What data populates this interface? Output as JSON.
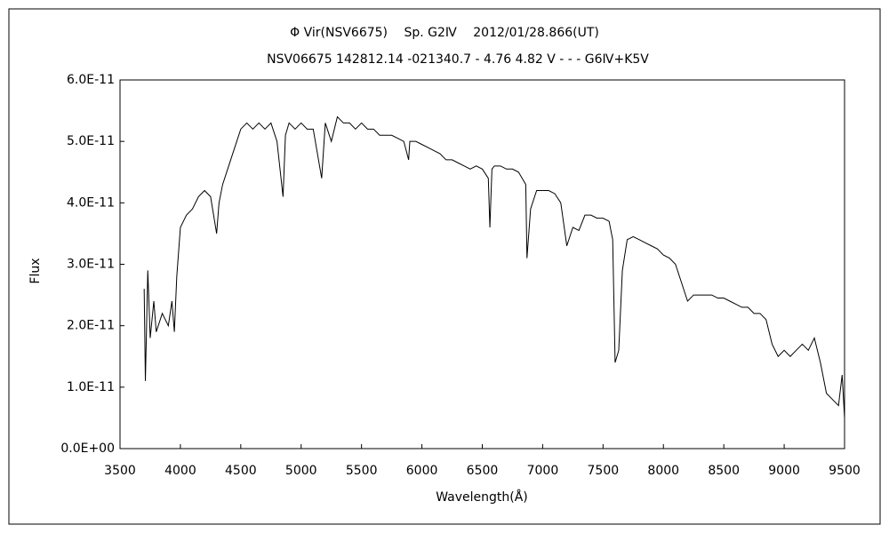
{
  "chart_data": {
    "type": "line",
    "title": "Φ Vir(NSV6675)　 Sp. G2Ⅳ　 2012/01/28.866(UT)",
    "subtitle": "NSV06675 142812.14 -021340.7 - 4.76 4.82 V - - - G6Ⅳ+K5V",
    "x_label": "Wavelength(Å)",
    "y_label": "Flux",
    "xlim": [
      3500,
      9500
    ],
    "xticks": [
      3500,
      4000,
      4500,
      5000,
      5500,
      6000,
      6500,
      7000,
      7500,
      8000,
      8500,
      9000,
      9500
    ],
    "ylim": [
      0,
      6e-11
    ],
    "yticks": [
      {
        "value": 0,
        "label": "0.0E+00"
      },
      {
        "value": 1e-11,
        "label": "1.0E-11"
      },
      {
        "value": 2e-11,
        "label": "2.0E-11"
      },
      {
        "value": 3e-11,
        "label": "3.0E-11"
      },
      {
        "value": 4e-11,
        "label": "4.0E-11"
      },
      {
        "value": 5e-11,
        "label": "5.0E-11"
      },
      {
        "value": 6e-11,
        "label": "6.0E-11"
      }
    ],
    "grid": false,
    "color": "#000000",
    "x": [
      3700,
      3710,
      3730,
      3750,
      3780,
      3800,
      3850,
      3900,
      3930,
      3950,
      3970,
      4000,
      4050,
      4100,
      4150,
      4200,
      4250,
      4300,
      4320,
      4350,
      4400,
      4450,
      4500,
      4550,
      4600,
      4650,
      4700,
      4750,
      4800,
      4850,
      4870,
      4900,
      4950,
      5000,
      5050,
      5100,
      5170,
      5200,
      5250,
      5300,
      5350,
      5400,
      5450,
      5500,
      5550,
      5600,
      5650,
      5700,
      5750,
      5800,
      5850,
      5890,
      5900,
      5950,
      6000,
      6050,
      6100,
      6150,
      6200,
      6250,
      6300,
      6350,
      6400,
      6450,
      6500,
      6550,
      6563,
      6580,
      6600,
      6650,
      6700,
      6750,
      6800,
      6860,
      6870,
      6900,
      6950,
      7000,
      7050,
      7100,
      7150,
      7200,
      7250,
      7300,
      7350,
      7400,
      7450,
      7500,
      7550,
      7580,
      7600,
      7630,
      7660,
      7700,
      7750,
      7800,
      7850,
      7900,
      7950,
      8000,
      8050,
      8100,
      8150,
      8200,
      8250,
      8300,
      8350,
      8400,
      8450,
      8500,
      8550,
      8600,
      8650,
      8700,
      8750,
      8800,
      8850,
      8900,
      8950,
      9000,
      9050,
      9100,
      9150,
      9200,
      9250,
      9300,
      9350,
      9400,
      9450,
      9480,
      9500
    ],
    "values": [
      2.6e-11,
      1.1e-11,
      2.9e-11,
      1.8e-11,
      2.4e-11,
      1.9e-11,
      2.2e-11,
      2e-11,
      2.4e-11,
      1.9e-11,
      2.8e-11,
      3.6e-11,
      3.8e-11,
      3.9e-11,
      4.1e-11,
      4.2e-11,
      4.1e-11,
      3.5e-11,
      4e-11,
      4.3e-11,
      4.6e-11,
      4.9e-11,
      5.2e-11,
      5.3e-11,
      5.2e-11,
      5.3e-11,
      5.2e-11,
      5.3e-11,
      5e-11,
      4.1e-11,
      5.1e-11,
      5.3e-11,
      5.2e-11,
      5.3e-11,
      5.2e-11,
      5.2e-11,
      4.4e-11,
      5.3e-11,
      5e-11,
      5.4e-11,
      5.3e-11,
      5.3e-11,
      5.2e-11,
      5.3e-11,
      5.2e-11,
      5.2e-11,
      5.1e-11,
      5.1e-11,
      5.1e-11,
      5.05e-11,
      5e-11,
      4.7e-11,
      5e-11,
      5e-11,
      4.95e-11,
      4.9e-11,
      4.85e-11,
      4.8e-11,
      4.7e-11,
      4.7e-11,
      4.65e-11,
      4.6e-11,
      4.55e-11,
      4.6e-11,
      4.55e-11,
      4.4e-11,
      3.6e-11,
      4.55e-11,
      4.6e-11,
      4.6e-11,
      4.55e-11,
      4.55e-11,
      4.5e-11,
      4.3e-11,
      3.1e-11,
      3.9e-11,
      4.2e-11,
      4.2e-11,
      4.2e-11,
      4.15e-11,
      4e-11,
      3.3e-11,
      3.6e-11,
      3.55e-11,
      3.8e-11,
      3.8e-11,
      3.75e-11,
      3.75e-11,
      3.7e-11,
      3.4e-11,
      1.4e-11,
      1.6e-11,
      2.9e-11,
      3.4e-11,
      3.45e-11,
      3.4e-11,
      3.35e-11,
      3.3e-11,
      3.25e-11,
      3.15e-11,
      3.1e-11,
      3e-11,
      2.7e-11,
      2.4e-11,
      2.5e-11,
      2.5e-11,
      2.5e-11,
      2.5e-11,
      2.45e-11,
      2.45e-11,
      2.4e-11,
      2.35e-11,
      2.3e-11,
      2.3e-11,
      2.2e-11,
      2.2e-11,
      2.1e-11,
      1.7e-11,
      1.5e-11,
      1.6e-11,
      1.5e-11,
      1.6e-11,
      1.7e-11,
      1.6e-11,
      1.8e-11,
      1.4e-11,
      9e-12,
      8e-12,
      7e-12,
      1.2e-11,
      5e-12
    ]
  }
}
